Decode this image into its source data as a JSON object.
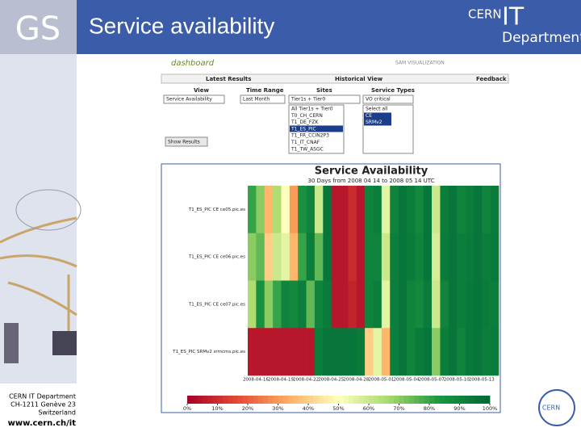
{
  "slide": {
    "logo": "GS",
    "title": "Service availability",
    "org": "CERN",
    "org_mark": "IT",
    "dept": "Department",
    "footer": [
      "CERN IT Department",
      "CH-1211 Genève 23",
      "Switzerland"
    ],
    "url": "www.cern.ch/it",
    "badge": "CERN"
  },
  "dashboard": {
    "brand": "dashboard",
    "subtitle": "SAM VISUALIZATION",
    "tabs": [
      "Latest Results",
      "Historical View",
      "Feedback"
    ],
    "labels": [
      "View",
      "Time Range",
      "Sites",
      "Service Types"
    ],
    "view": "Service Availability",
    "time_range": "Last Month",
    "sites_group": "Tier1s + Tier0",
    "sites": [
      "All Tier1s + Tier0",
      "T0_CH_CERN",
      "T1_DE_FZK",
      "T1_ES_PIC",
      "T1_FR_CCIN2P3",
      "T1_IT_CNAF",
      "T1_TW_ASGC"
    ],
    "service_group": "VO critical",
    "service_types": [
      "Select all",
      "CE",
      "SRMv2"
    ],
    "button": "Show Results"
  },
  "chart_data": {
    "type": "heatmap",
    "title": "Service Availability",
    "subtitle": "30 Days from 2008 04 14 to 2008 05 14 UTC",
    "categories": [
      null,
      null,
      "2008-04-16",
      null,
      null,
      "2008-04-19",
      null,
      null,
      "2008-04-22",
      null,
      null,
      "2008-04-25",
      null,
      null,
      "2008-04-28",
      null,
      null,
      "2008-05-01",
      null,
      null,
      "2008-05-04",
      null,
      null,
      "2008-05-07",
      null,
      null,
      "2008-05-10",
      null,
      null,
      "2008-05-13"
    ],
    "series": [
      {
        "name": "T1_ES_PIC CE ce05.pic.es",
        "values": [
          80,
          70,
          35,
          65,
          50,
          30,
          85,
          90,
          60,
          95,
          5,
          5,
          10,
          5,
          90,
          92,
          55,
          90,
          95,
          92,
          88,
          95,
          60,
          92,
          95,
          90,
          92,
          95,
          90,
          93
        ]
      },
      {
        "name": "T1_ES_PIC CE ce06.pic.es",
        "values": [
          70,
          75,
          40,
          60,
          55,
          35,
          80,
          92,
          75,
          95,
          5,
          5,
          10,
          5,
          90,
          90,
          60,
          92,
          95,
          93,
          90,
          95,
          58,
          93,
          95,
          92,
          93,
          95,
          92,
          94
        ]
      },
      {
        "name": "T1_ES_PIC CE ce07.pic.es",
        "values": [
          65,
          85,
          70,
          80,
          90,
          88,
          92,
          75,
          90,
          93,
          5,
          5,
          8,
          5,
          90,
          92,
          55,
          92,
          95,
          90,
          88,
          93,
          60,
          90,
          95,
          92,
          94,
          95,
          93,
          92
        ]
      },
      {
        "name": "T1_ES_PIC SRMv2 srmcms.pic.es",
        "values": [
          5,
          5,
          5,
          5,
          5,
          5,
          5,
          5,
          92,
          95,
          95,
          95,
          95,
          93,
          40,
          55,
          35,
          92,
          95,
          90,
          93,
          95,
          70,
          92,
          95,
          90,
          94,
          95,
          92,
          93
        ]
      }
    ],
    "colorscale": [
      "#a50026",
      "#e34a33",
      "#fdae61",
      "#ffffbf",
      "#a6d96a",
      "#1a9641",
      "#006837"
    ],
    "clim": [
      0,
      100
    ],
    "cticks": [
      {
        "value": 0,
        "label": "0%"
      },
      {
        "value": 10,
        "label": "10%"
      },
      {
        "value": 20,
        "label": "20%"
      },
      {
        "value": 30,
        "label": "30%"
      },
      {
        "value": 40,
        "label": "40%"
      },
      {
        "value": 50,
        "label": "50%"
      },
      {
        "value": 60,
        "label": "60%"
      },
      {
        "value": 70,
        "label": "70%"
      },
      {
        "value": 80,
        "label": "80%"
      },
      {
        "value": 90,
        "label": "90%"
      },
      {
        "value": 100,
        "label": "100%"
      }
    ]
  }
}
